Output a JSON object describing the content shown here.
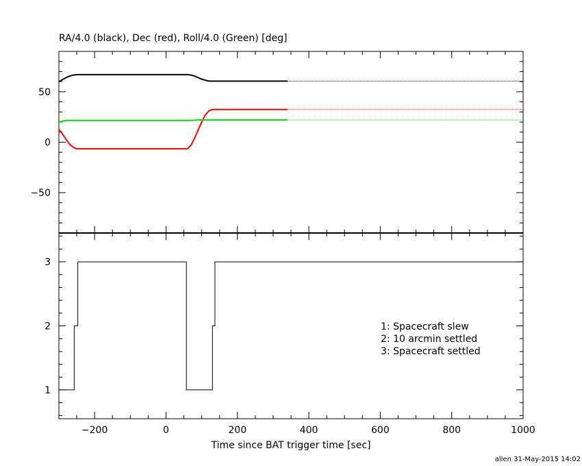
{
  "top_title": "RA/4.0 (black), Dec (red), Roll/4.0 (Green) [deg]",
  "xlabel": "Time since BAT trigger time [sec]",
  "footer": "allen 31-May-2015 14:02",
  "colors": {
    "ra": "#000000",
    "dec": "#ff0000",
    "roll": "#00dd00",
    "axis": "#000000",
    "background": "#ffffff"
  },
  "chart_data": [
    {
      "type": "line",
      "title": "RA/4.0 (black), Dec (red), Roll/4.0 (Green) [deg]",
      "xlim": [
        -300,
        1000
      ],
      "ylim": [
        -90,
        90
      ],
      "y_ticks": [
        {
          "value": 50,
          "label": "50"
        },
        {
          "value": 0,
          "label": "0"
        },
        {
          "value": -50,
          "label": "−50"
        }
      ],
      "series": [
        {
          "key": "ra",
          "color": "#000000",
          "solid_until": 340,
          "x": [
            -300,
            -290,
            -280,
            -270,
            -260,
            -250,
            60,
            70,
            80,
            90,
            100,
            110,
            120,
            130,
            1000
          ],
          "y": [
            60,
            62,
            64,
            65.5,
            66.5,
            67,
            67,
            66.5,
            65.5,
            64,
            62.5,
            61.5,
            60.5,
            60.5,
            60.5
          ]
        },
        {
          "key": "dec",
          "color": "#ff0000",
          "solid_until": 340,
          "x": [
            -300,
            -290,
            -280,
            -270,
            -260,
            -250,
            60,
            70,
            80,
            90,
            100,
            110,
            120,
            130,
            1000
          ],
          "y": [
            13,
            8,
            3,
            -2,
            -5,
            -6.5,
            -6.5,
            -3,
            4,
            12,
            20,
            27,
            31,
            32.5,
            32.5
          ]
        },
        {
          "key": "roll",
          "color": "#00dd00",
          "solid_until": 340,
          "x": [
            -300,
            -280,
            70,
            90,
            1000
          ],
          "y": [
            20,
            21.5,
            21.5,
            22,
            22
          ]
        }
      ]
    },
    {
      "type": "line",
      "xlabel": "Time since BAT trigger time [sec]",
      "xlim": [
        -300,
        1000
      ],
      "ylim": [
        0.55,
        3.45
      ],
      "y_ticks": [
        {
          "value": 1,
          "label": "1"
        },
        {
          "value": 2,
          "label": "2"
        },
        {
          "value": 3,
          "label": "3"
        }
      ],
      "x_ticks": [
        {
          "value": -200,
          "label": "−200"
        },
        {
          "value": 0,
          "label": "0"
        },
        {
          "value": 200,
          "label": "200"
        },
        {
          "value": 400,
          "label": "400"
        },
        {
          "value": 600,
          "label": "600"
        },
        {
          "value": 800,
          "label": "800"
        },
        {
          "value": 1000,
          "label": "1000"
        }
      ],
      "series": [
        {
          "key": "settle_state",
          "color": "#000000",
          "step": true,
          "x": [
            -300,
            -257,
            -247,
            57,
            130,
            137,
            1000
          ],
          "y": [
            1,
            2,
            3,
            1,
            2,
            3,
            3
          ]
        }
      ],
      "legend_position": "right",
      "legend_entries": [
        "1: Spacecraft slew",
        "2: 10 arcmin settled",
        "3: Spacecraft settled"
      ]
    }
  ]
}
